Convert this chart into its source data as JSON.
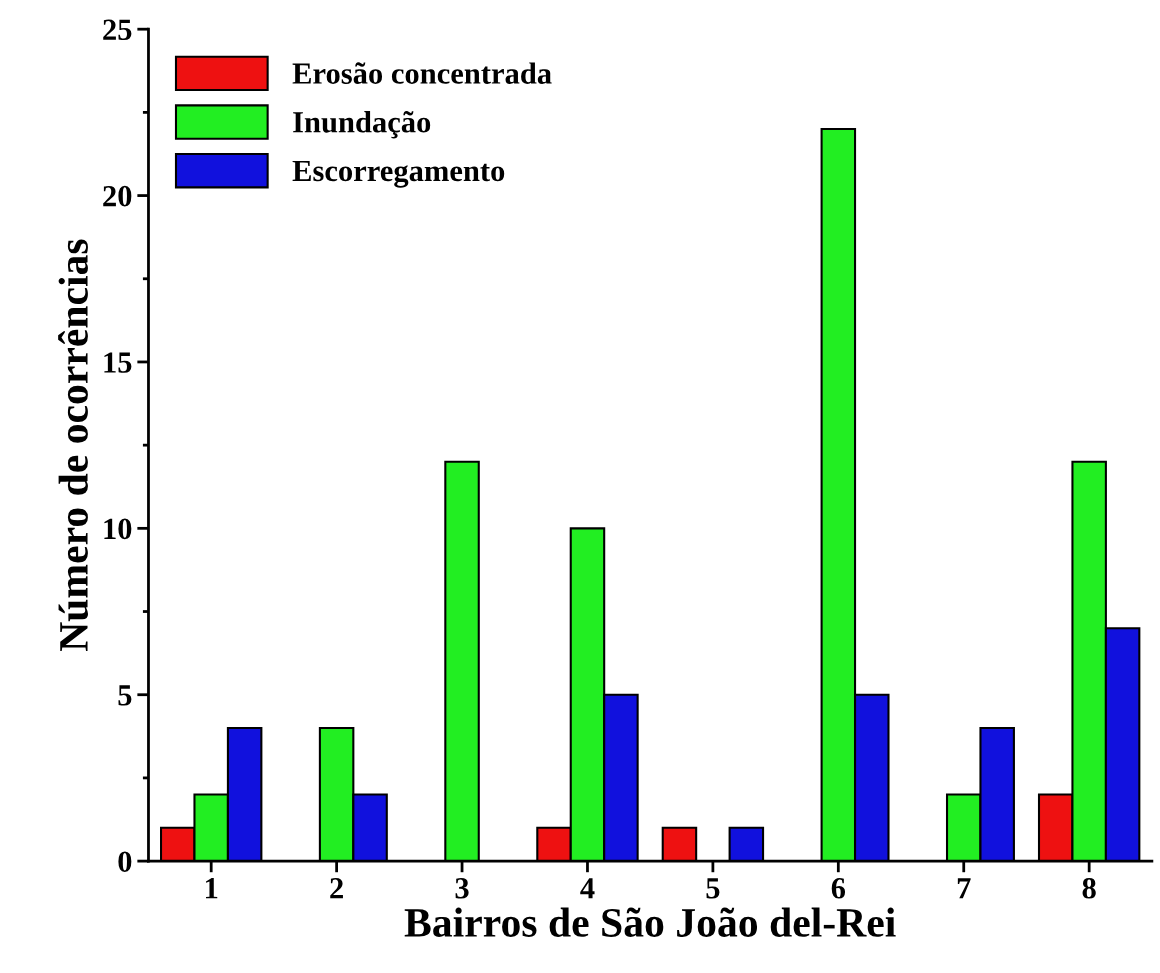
{
  "chart_data": {
    "type": "bar",
    "xlabel": "Bairros de São João del-Rei",
    "ylabel": "Número de ocorrências",
    "categories": [
      "1",
      "2",
      "3",
      "4",
      "5",
      "6",
      "7",
      "8"
    ],
    "series": [
      {
        "name": "Erosão concentrada",
        "color": "#ee1111",
        "values": [
          1,
          null,
          null,
          1,
          1,
          null,
          null,
          2
        ]
      },
      {
        "name": "Inundação",
        "color": "#22ee22",
        "values": [
          2,
          4,
          12,
          10,
          null,
          22,
          2,
          12
        ]
      },
      {
        "name": "Escorregamento",
        "color": "#1111dd",
        "values": [
          4,
          2,
          null,
          5,
          1,
          5,
          4,
          7
        ]
      }
    ],
    "ylim": [
      0,
      25
    ],
    "yticks": [
      0,
      5,
      10,
      15,
      20,
      25
    ],
    "grid": false,
    "legend": "top left"
  }
}
